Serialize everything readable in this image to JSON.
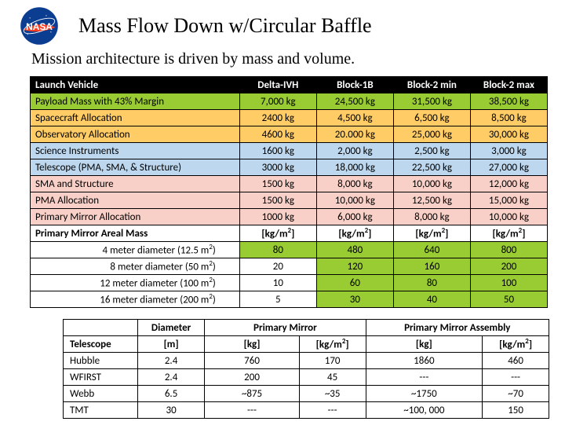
{
  "title": "Mass Flow Down w/Circular Baffle",
  "subtitle": "Mission architecture is driven by mass and volume.",
  "colors": {
    "black": "#000000",
    "white": "#ffffff",
    "green": "#99cc33",
    "orange": "#ffcc66",
    "blue": "#bdd7ee",
    "peach": "#f8d0c8"
  },
  "table1": {
    "header": [
      "Launch Vehicle",
      "Delta-IVH",
      "Block-1B",
      "Block-2 min",
      "Block-2 max"
    ],
    "rows": [
      {
        "cells": [
          "Payload Mass with 43% Margin",
          "7,000 kg",
          "24,500 kg",
          "31,500 kg",
          "38,500 kg"
        ],
        "bg": [
          "green",
          "green",
          "green",
          "green",
          "green"
        ],
        "indent": false
      },
      {
        "cells": [
          "Spacecraft Allocation",
          "2400 kg",
          "4,500 kg",
          "6,500 kg",
          "8,500 kg"
        ],
        "bg": [
          "orange",
          "orange",
          "orange",
          "orange",
          "orange"
        ],
        "indent": false
      },
      {
        "cells": [
          "Observatory Allocation",
          "4600 kg",
          "20.000 kg",
          "25,000 kg",
          "30,000 kg"
        ],
        "bg": [
          "orange",
          "orange",
          "orange",
          "orange",
          "orange"
        ],
        "indent": false
      },
      {
        "cells": [
          "Science Instruments",
          "1600 kg",
          "2,000 kg",
          "2,500 kg",
          "3,000 kg"
        ],
        "bg": [
          "blue",
          "blue",
          "blue",
          "blue",
          "blue"
        ],
        "indent": false
      },
      {
        "cells": [
          "Telescope (PMA, SMA, & Structure)",
          "3000 kg",
          "18,000 kg",
          "22,500 kg",
          "27,000 kg"
        ],
        "bg": [
          "blue",
          "blue",
          "blue",
          "blue",
          "blue"
        ],
        "indent": false
      },
      {
        "cells": [
          "SMA and Structure",
          "1500 kg",
          "8,000 kg",
          "10,000 kg",
          "12,000 kg"
        ],
        "bg": [
          "peach",
          "peach",
          "peach",
          "peach",
          "peach"
        ],
        "indent": false
      },
      {
        "cells": [
          "PMA Allocation",
          "1500 kg",
          "10,000 kg",
          "12,500 kg",
          "15,000 kg"
        ],
        "bg": [
          "peach",
          "peach",
          "peach",
          "peach",
          "peach"
        ],
        "indent": false
      },
      {
        "cells": [
          "Primary Mirror Allocation",
          "1000 kg",
          "6,000 kg",
          "8,000 kg",
          "10,000 kg"
        ],
        "bg": [
          "peach",
          "peach",
          "peach",
          "peach",
          "peach"
        ],
        "indent": false
      }
    ],
    "areal_header": [
      "Primary Mirror Areal Mass",
      "[kg/m²]",
      "[kg/m²]",
      "[kg/m²]",
      "[kg/m²]"
    ],
    "areal_rows": [
      {
        "cells": [
          "4 meter diameter (12.5 m²)",
          "80",
          "480",
          "640",
          "800"
        ],
        "bg": [
          "white",
          "green",
          "green",
          "green",
          "green"
        ],
        "indent": true
      },
      {
        "cells": [
          "8 meter diameter (50 m²)",
          "20",
          "120",
          "160",
          "200"
        ],
        "bg": [
          "white",
          "white",
          "green",
          "green",
          "green"
        ],
        "indent": true
      },
      {
        "cells": [
          "12 meter diameter (100 m²)",
          "10",
          "60",
          "80",
          "100"
        ],
        "bg": [
          "white",
          "white",
          "green",
          "green",
          "green"
        ],
        "indent": true
      },
      {
        "cells": [
          "16 meter diameter (200 m²)",
          "5",
          "30",
          "40",
          "50"
        ],
        "bg": [
          "white",
          "white",
          "green",
          "green",
          "green"
        ],
        "indent": true
      }
    ]
  },
  "table2": {
    "header1": [
      "",
      "Diameter",
      "Primary Mirror",
      "",
      "Primary Mirror Assembly",
      ""
    ],
    "header2": [
      "Telescope",
      "[m]",
      "[kg]",
      "[kg/m²]",
      "[kg]",
      "[kg/m²]"
    ],
    "rows": [
      [
        "Hubble",
        "2.4",
        "760",
        "170",
        "1860",
        "460"
      ],
      [
        "WFIRST",
        "2.4",
        "200",
        "45",
        "---",
        "---"
      ],
      [
        "Webb",
        "6.5",
        "~875",
        "~35",
        "~1750",
        "~70"
      ],
      [
        "TMT",
        "30",
        "---",
        "---",
        "~100, 000",
        "150"
      ]
    ]
  }
}
